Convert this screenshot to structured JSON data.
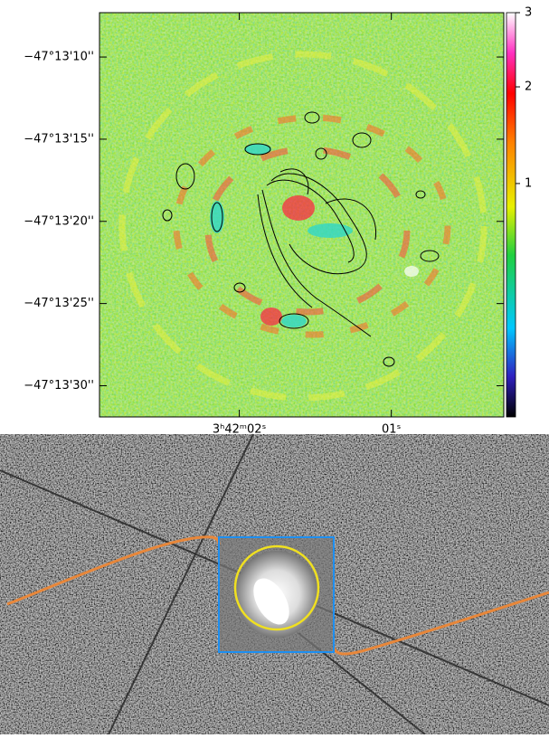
{
  "top_panel": {
    "yticks": [
      {
        "value": 10,
        "label": "−47°13'10''"
      },
      {
        "value": 15,
        "label": "−47°13'15''"
      },
      {
        "value": 20,
        "label": "−47°13'20''"
      },
      {
        "value": 25,
        "label": "−47°13'25''"
      },
      {
        "value": 30,
        "label": "−47°13'30''"
      }
    ],
    "ylim": [
      7.3,
      31.9
    ],
    "xticks": [
      {
        "value": 2,
        "label": "3ʰ42ᵐ02ˢ"
      },
      {
        "value": 1,
        "label": "01ˢ"
      }
    ],
    "xlim": [
      2.92,
      0.26
    ],
    "colorbar": {
      "ticks": [
        1,
        2,
        3
      ],
      "lim": [
        0,
        3
      ],
      "scale": "sqrt"
    }
  }
}
